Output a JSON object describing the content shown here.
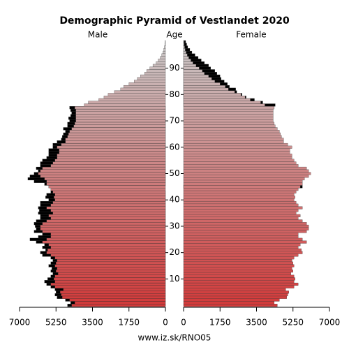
{
  "chart_data": {
    "type": "pyramid",
    "title": "Demographic Pyramid of Vestlandet 2020",
    "left_label": "Male",
    "center_label": "Age",
    "right_label": "Female",
    "footer": "www.iz.sk/RNO05",
    "y": [
      0,
      1,
      2,
      3,
      4,
      5,
      6,
      7,
      8,
      9,
      10,
      11,
      12,
      13,
      14,
      15,
      16,
      17,
      18,
      19,
      20,
      21,
      22,
      23,
      24,
      25,
      26,
      27,
      28,
      29,
      30,
      31,
      32,
      33,
      34,
      35,
      36,
      37,
      38,
      39,
      40,
      41,
      42,
      43,
      44,
      45,
      46,
      47,
      48,
      49,
      50,
      51,
      52,
      53,
      54,
      55,
      56,
      57,
      58,
      59,
      60,
      61,
      62,
      63,
      64,
      65,
      66,
      67,
      68,
      69,
      70,
      71,
      72,
      73,
      74,
      75,
      76,
      77,
      78,
      79,
      80,
      81,
      82,
      83,
      84,
      85,
      86,
      87,
      88,
      89,
      90,
      91,
      92,
      93,
      94,
      95,
      96,
      97,
      98,
      99,
      100
    ],
    "ylim": [
      -0.5,
      100.5
    ],
    "yticks": [
      10,
      20,
      30,
      40,
      50,
      60,
      70,
      80,
      90
    ],
    "xlim": [
      0,
      7000
    ],
    "xticks": [
      0,
      1750,
      3500,
      5250,
      7000
    ],
    "color_young": "#d23a3a",
    "color_old": "#c8c8c8",
    "excess_color": "#000000",
    "series": [
      {
        "name": "Male",
        "values": [
          4700,
          4550,
          4800,
          5200,
          5300,
          5250,
          5300,
          5500,
          5700,
          5800,
          5650,
          5500,
          5400,
          5500,
          5450,
          5600,
          5500,
          5400,
          5500,
          5900,
          6000,
          5750,
          5900,
          5800,
          6200,
          6500,
          6100,
          5900,
          6300,
          6200,
          6250,
          6300,
          6200,
          6000,
          6000,
          6100,
          6050,
          6100,
          6000,
          6000,
          5600,
          5750,
          5700,
          5500,
          5500,
          5600,
          5800,
          6300,
          6600,
          6500,
          6300,
          6100,
          6200,
          6000,
          6000,
          5900,
          5700,
          5600,
          5600,
          5600,
          5400,
          5400,
          5200,
          5000,
          4950,
          4900,
          4800,
          4900,
          4700,
          4700,
          4600,
          4650,
          4550,
          4500,
          4550,
          4600,
          3900,
          3700,
          3200,
          2950,
          2750,
          2450,
          2150,
          2000,
          1750,
          1500,
          1350,
          1200,
          1000,
          900,
          750,
          600,
          450,
          350,
          250,
          180,
          120,
          80,
          50,
          30,
          20
        ]
      },
      {
        "name": "Female",
        "values": [
          4500,
          4350,
          4600,
          4950,
          5000,
          5050,
          4900,
          5300,
          5500,
          5300,
          5350,
          5300,
          5150,
          5250,
          5200,
          5300,
          5250,
          5200,
          5300,
          5500,
          5700,
          5650,
          5500,
          5600,
          5900,
          5700,
          5500,
          5500,
          5900,
          6000,
          6000,
          5900,
          5700,
          5500,
          5600,
          5400,
          5500,
          5700,
          5500,
          5400,
          5300,
          5350,
          5300,
          5400,
          5500,
          5700,
          5700,
          5700,
          5800,
          6000,
          6100,
          6000,
          5900,
          5500,
          5400,
          5300,
          5200,
          5200,
          5100,
          5100,
          5200,
          5000,
          4800,
          4800,
          4700,
          4650,
          4600,
          4500,
          4400,
          4350,
          4300,
          4300,
          4300,
          4300,
          4300,
          4350,
          4400,
          3800,
          3400,
          3000,
          2800,
          2550,
          2500,
          2200,
          2100,
          1950,
          1800,
          1750,
          1600,
          1500,
          1300,
          1200,
          1000,
          850,
          700,
          550,
          400,
          300,
          200,
          150,
          100
        ]
      }
    ]
  }
}
